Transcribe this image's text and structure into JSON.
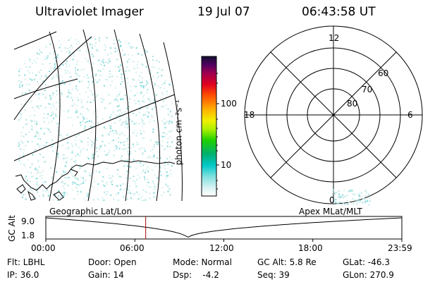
{
  "header": {
    "title": "Ultraviolet Imager",
    "date": "19 Jul 07",
    "time": "06:43:58 UT"
  },
  "colorbar": {
    "label": "photon cm⁻²s⁻¹",
    "ticks": [
      "100",
      "10"
    ]
  },
  "polar": {
    "hour_labels": {
      "top": "12",
      "left": "18",
      "right": "6",
      "bottom": "0"
    },
    "lat_labels": [
      "60",
      "70",
      "80"
    ]
  },
  "timeline": {
    "left_label": "Geographic Lat/Lon",
    "right_label": "Apex MLat/MLT",
    "axis_title": "GC Alt",
    "y_ticks": [
      "9.0",
      "1.8"
    ],
    "x_ticks": [
      "00:00",
      "06:00",
      "12:00",
      "18:00",
      "23:59"
    ],
    "current_time_fraction": 0.2805
  },
  "status": {
    "row1": {
      "filter": "Flt: LBHL",
      "door": "Door: Open",
      "mode": "Mode: Normal",
      "gc_alt": "GC Alt: 5.8 Re",
      "glat": "GLat: -46.3"
    },
    "row2": {
      "ip": "IP: 36.0",
      "gain": "Gain: 14",
      "dsp": "Dsp:    -4.2",
      "seq": "Seq: 39",
      "glon": "GLon: 270.9"
    }
  },
  "colors": {
    "dots": "#7fd8d8",
    "marker": "#b00000"
  }
}
